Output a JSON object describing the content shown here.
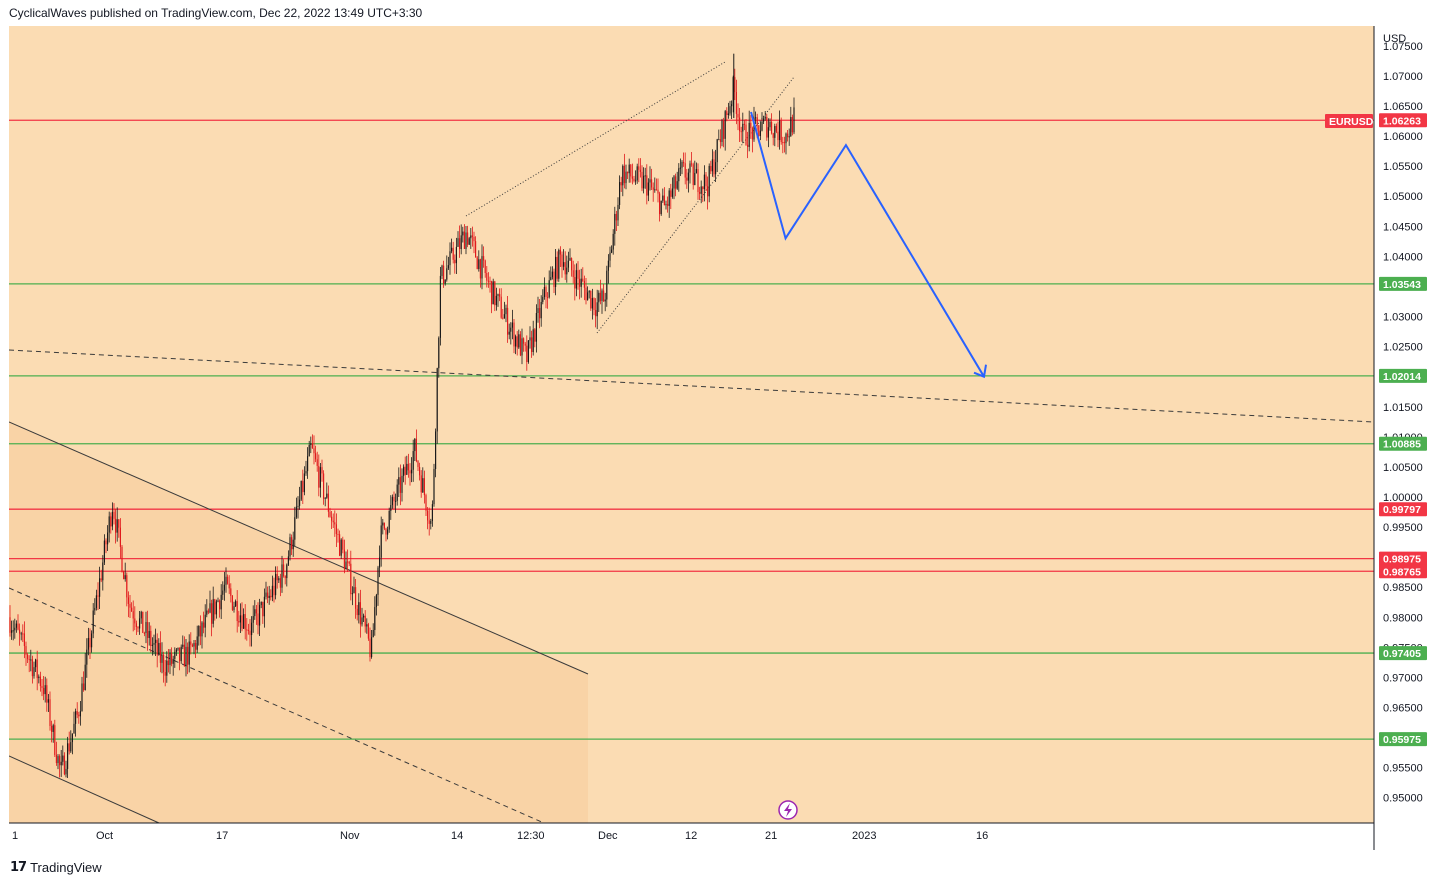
{
  "header": {
    "publisher_line": "CyclicalWaves published on TradingView.com, Dec 22, 2022 13:49 UTC+3:30"
  },
  "footer": {
    "logo_mark": "17",
    "brand": "TradingView"
  },
  "colors": {
    "background": "#fbdcb3",
    "channel_fill": "#f9d3a6",
    "up_candle": "#1a1a1a",
    "down_candle": "#e0191c",
    "red_level": "#f23645",
    "green_level": "#4caf50",
    "projection": "#2962ff",
    "symbol_tag": "#f23645"
  },
  "chart_data": {
    "type": "candlestick",
    "symbol": "EURUSD",
    "currency": "USD",
    "last_price": "1.06263",
    "ylim": [
      0.9458,
      1.0783
    ],
    "y_ticks": [
      "1.07500",
      "1.07000",
      "1.06500",
      "1.06000",
      "1.05500",
      "1.05000",
      "1.04500",
      "1.04000",
      "1.03500",
      "1.03000",
      "1.02500",
      "1.02000",
      "1.01500",
      "1.01000",
      "1.00500",
      "1.00000",
      "0.99500",
      "0.99000",
      "0.98500",
      "0.98000",
      "0.97500",
      "0.97000",
      "0.96500",
      "0.96000",
      "0.95500",
      "0.95000"
    ],
    "x_ticks": [
      "1",
      "Oct",
      "17",
      "Nov",
      "14",
      "12:30",
      "Dec",
      "12",
      "21",
      "2023",
      "16"
    ],
    "price_path": [
      [
        "Sep 22",
        0.98
      ],
      [
        "Sep 26",
        0.9685
      ],
      [
        "Sep 28",
        0.954
      ],
      [
        "Sep 30",
        0.964
      ],
      [
        "Oct 4",
        0.999
      ],
      [
        "Oct 6",
        0.982
      ],
      [
        "Oct 10",
        0.972
      ],
      [
        "Oct 13",
        0.974
      ],
      [
        "Oct 17",
        0.985
      ],
      [
        "Oct 20",
        0.978
      ],
      [
        "Oct 24",
        0.988
      ],
      [
        "Oct 27",
        1.008
      ],
      [
        "Oct 31",
        0.989
      ],
      [
        "Nov 3",
        0.974
      ],
      [
        "Nov 4",
        0.993
      ],
      [
        "Nov 8",
        1.008
      ],
      [
        "Nov 10",
        0.995
      ],
      [
        "Nov 11",
        1.036
      ],
      [
        "Nov 14",
        1.044
      ],
      [
        "Nov 17",
        1.034
      ],
      [
        "Nov 21",
        1.023
      ],
      [
        "Nov 23",
        1.033
      ],
      [
        "Nov 25",
        1.04
      ],
      [
        "Nov 29",
        1.032
      ],
      [
        "Nov 30",
        1.033
      ],
      [
        "Dec 2",
        1.054
      ],
      [
        "Dec 5",
        1.052
      ],
      [
        "Dec 7",
        1.048
      ],
      [
        "Dec 9",
        1.054
      ],
      [
        "Dec 12",
        1.052
      ],
      [
        "Dec 15",
        1.068
      ],
      [
        "Dec 16",
        1.06
      ],
      [
        "Dec 19",
        1.062
      ],
      [
        "Dec 21",
        1.06
      ],
      [
        "Dec 22",
        1.063
      ]
    ],
    "levels": [
      {
        "price": "1.06263",
        "color": "red"
      },
      {
        "price": "1.03543",
        "color": "green"
      },
      {
        "price": "1.02014",
        "color": "green"
      },
      {
        "price": "1.00885",
        "color": "green"
      },
      {
        "price": "0.99797",
        "color": "red"
      },
      {
        "price": "0.98975",
        "color": "red"
      },
      {
        "price": "0.98765",
        "color": "red"
      },
      {
        "price": "0.97405",
        "color": "green"
      },
      {
        "price": "0.95975",
        "color": "green"
      }
    ],
    "projection_path": [
      [
        "Dec 17",
        1.064
      ],
      [
        "Dec 21",
        1.043
      ],
      [
        "Dec 28",
        1.0585
      ],
      [
        "Jan 13",
        1.02
      ]
    ],
    "grid": false
  }
}
